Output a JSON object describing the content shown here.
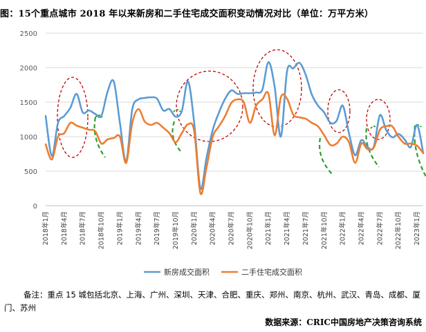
{
  "title": "图：15个重点城市 2018 年以来新房和二手住宅成交面积变动情况对比（单位：万平方米）",
  "note": "备注：重点 15 城包括北京、上海、广州、深圳、天津、合肥、重庆、郑州、南京、杭州、武汉、青岛、成都、厦门、苏州",
  "source": "数据来源：CRIC中国房地产决策咨询系统",
  "colors": {
    "new_house": "#5B9BD5",
    "second_hand": "#ED7D31",
    "circle": "#C00000",
    "green_mark": "#2E9E2E",
    "grid": "#D9D9D9"
  },
  "chart_data": {
    "type": "line",
    "ylim": [
      0,
      2500
    ],
    "yticks": [
      0,
      500,
      1000,
      1500,
      2000,
      2500
    ],
    "grid": "horizontal",
    "legend_position": "bottom",
    "x": [
      "2018年1月",
      "2018年2月",
      "2018年3月",
      "2018年4月",
      "2018年5月",
      "2018年6月",
      "2018年7月",
      "2018年8月",
      "2018年9月",
      "2018年10月",
      "2018年11月",
      "2018年12月",
      "2019年1月",
      "2019年2月",
      "2019年3月",
      "2019年4月",
      "2019年5月",
      "2019年6月",
      "2019年7月",
      "2019年8月",
      "2019年9月",
      "2019年10月",
      "2019年11月",
      "2019年12月",
      "2020年1月",
      "2020年2月",
      "2020年3月",
      "2020年4月",
      "2020年5月",
      "2020年6月",
      "2020年7月",
      "2020年8月",
      "2020年9月",
      "2020年10月",
      "2020年11月",
      "2020年12月",
      "2021年1月",
      "2021年2月",
      "2021年3月",
      "2021年4月",
      "2021年5月",
      "2021年6月",
      "2021年7月",
      "2021年8月",
      "2021年9月",
      "2021年10月",
      "2021年11月",
      "2021年12月",
      "2022年1月",
      "2022年2月",
      "2022年3月",
      "2022年4月",
      "2022年5月",
      "2022年6月",
      "2022年7月",
      "2022年8月",
      "2022年9月",
      "2022年10月",
      "2022年11月",
      "2022年12月",
      "2023年1月",
      "2023年2月"
    ],
    "xtick_labels": [
      "2018年1月",
      "2018年4月",
      "2018年7月",
      "2018年10月",
      "2019年1月",
      "2019年4月",
      "2019年7月",
      "2019年10月",
      "2020年1月",
      "2020年4月",
      "2020年7月",
      "2020年10月",
      "2021年1月",
      "2021年4月",
      "2021年7月",
      "2021年10月",
      "2022年1月",
      "2022年4月",
      "2022年7月",
      "2022年10月",
      "2023年1月"
    ],
    "series": [
      {
        "name": "新房成交面积",
        "values": [
          1300,
          720,
          1200,
          1300,
          1420,
          1620,
          1350,
          1380,
          1330,
          1300,
          1650,
          1800,
          1200,
          640,
          1400,
          1540,
          1560,
          1570,
          1550,
          1380,
          1400,
          1290,
          1370,
          1800,
          1200,
          250,
          700,
          1100,
          1350,
          1550,
          1670,
          1620,
          1630,
          1630,
          1640,
          1680,
          2080,
          1720,
          1000,
          1950,
          1990,
          2070,
          1900,
          1610,
          1450,
          1350,
          1200,
          1230,
          1450,
          1050,
          730,
          950,
          850,
          850,
          1310,
          1100,
          990,
          1040,
          960,
          850,
          1170,
          760
        ]
      },
      {
        "name": "二手住宅成交面积",
        "values": [
          890,
          670,
          1000,
          1050,
          1200,
          1160,
          1130,
          1100,
          1080,
          900,
          960,
          980,
          1000,
          620,
          1200,
          1400,
          1220,
          1170,
          1200,
          1130,
          1050,
          920,
          1050,
          1180,
          1080,
          180,
          560,
          1000,
          1150,
          1300,
          1490,
          1540,
          1500,
          1200,
          1450,
          1540,
          1620,
          1020,
          1570,
          1550,
          1320,
          1280,
          1260,
          1200,
          1150,
          1020,
          880,
          900,
          1000,
          920,
          620,
          900,
          820,
          840,
          1100,
          1150,
          1150,
          1000,
          900,
          900,
          870,
          760
        ]
      }
    ]
  }
}
